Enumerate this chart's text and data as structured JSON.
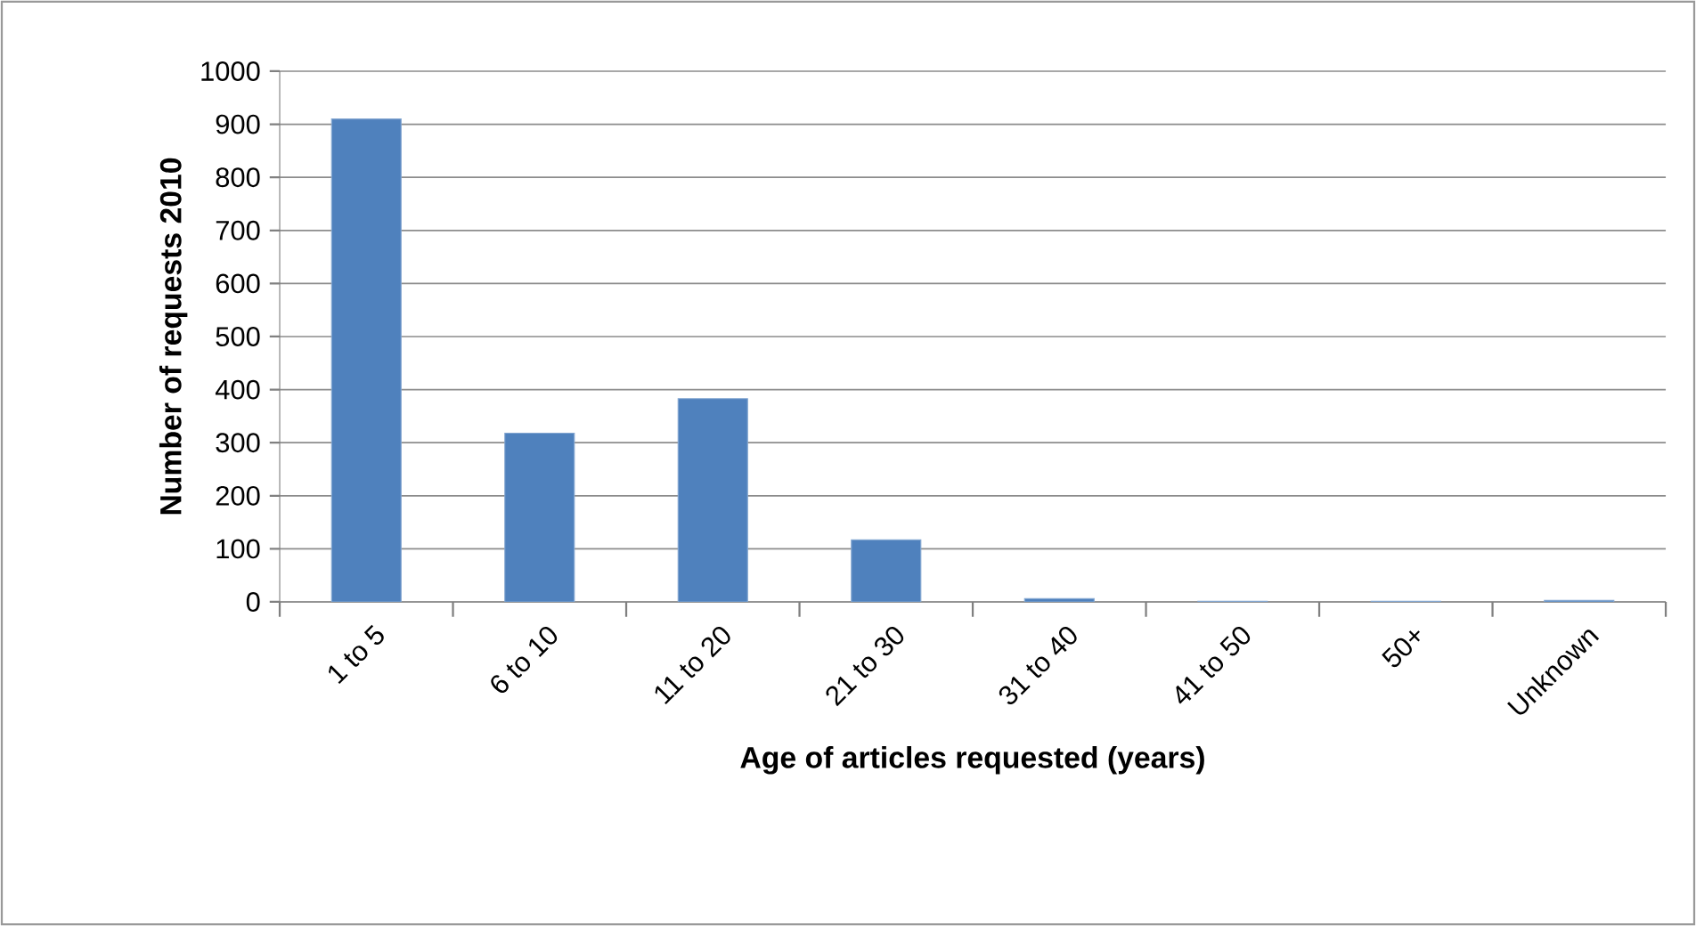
{
  "chart_data": {
    "type": "bar",
    "xlabel": "Age of articles requested (years)",
    "ylabel": "Number of requests 2010",
    "categories": [
      "1 to 5",
      "6 to 10",
      "11 to 20",
      "21 to 30",
      "31 to 40",
      "41 to 50",
      "50+",
      "Unknown"
    ],
    "values": [
      910,
      318,
      383,
      117,
      6,
      1,
      1,
      3
    ],
    "color": "#4f81bd",
    "ylim": [
      0,
      1000
    ],
    "yticks": [
      0,
      100,
      200,
      300,
      400,
      500,
      600,
      700,
      800,
      900,
      1000
    ],
    "grid": "y"
  }
}
